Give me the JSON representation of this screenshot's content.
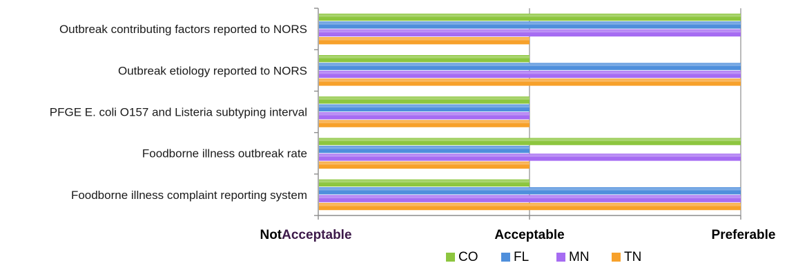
{
  "chart_data": {
    "type": "bar",
    "orientation": "horizontal",
    "categories": [
      "Outbreak contributing factors reported to NORS",
      "Outbreak etiology reported to NORS",
      "PFGE E. coli O157 and Listeria subtyping interval",
      "Foodborne illness outbreak rate",
      "Foodborne illness complaint reporting system"
    ],
    "x_ticks": [
      {
        "value": 0,
        "label_parts": [
          "Not",
          "Acceptable"
        ]
      },
      {
        "value": 1,
        "label_parts": [
          "Acceptable"
        ]
      },
      {
        "value": 2,
        "label_parts": [
          "Preferable"
        ]
      }
    ],
    "xlim": [
      0,
      2
    ],
    "series": [
      {
        "name": "CO",
        "color": "#8dc63f",
        "values": [
          2,
          1,
          1,
          2,
          1
        ]
      },
      {
        "name": "FL",
        "color": "#4f8fdc",
        "values": [
          2,
          2,
          1,
          1,
          2
        ]
      },
      {
        "name": "MN",
        "color": "#a66cf2",
        "values": [
          2,
          2,
          1,
          2,
          2
        ]
      },
      {
        "name": "TN",
        "color": "#f7a12b",
        "values": [
          1,
          2,
          1,
          1,
          2
        ]
      }
    ],
    "grid": true,
    "legend_position": "bottom"
  },
  "colors": {
    "not_label_text": "#000000",
    "acceptable_accent_text": "#3d1a4a",
    "axis": "#8c8c8c"
  }
}
